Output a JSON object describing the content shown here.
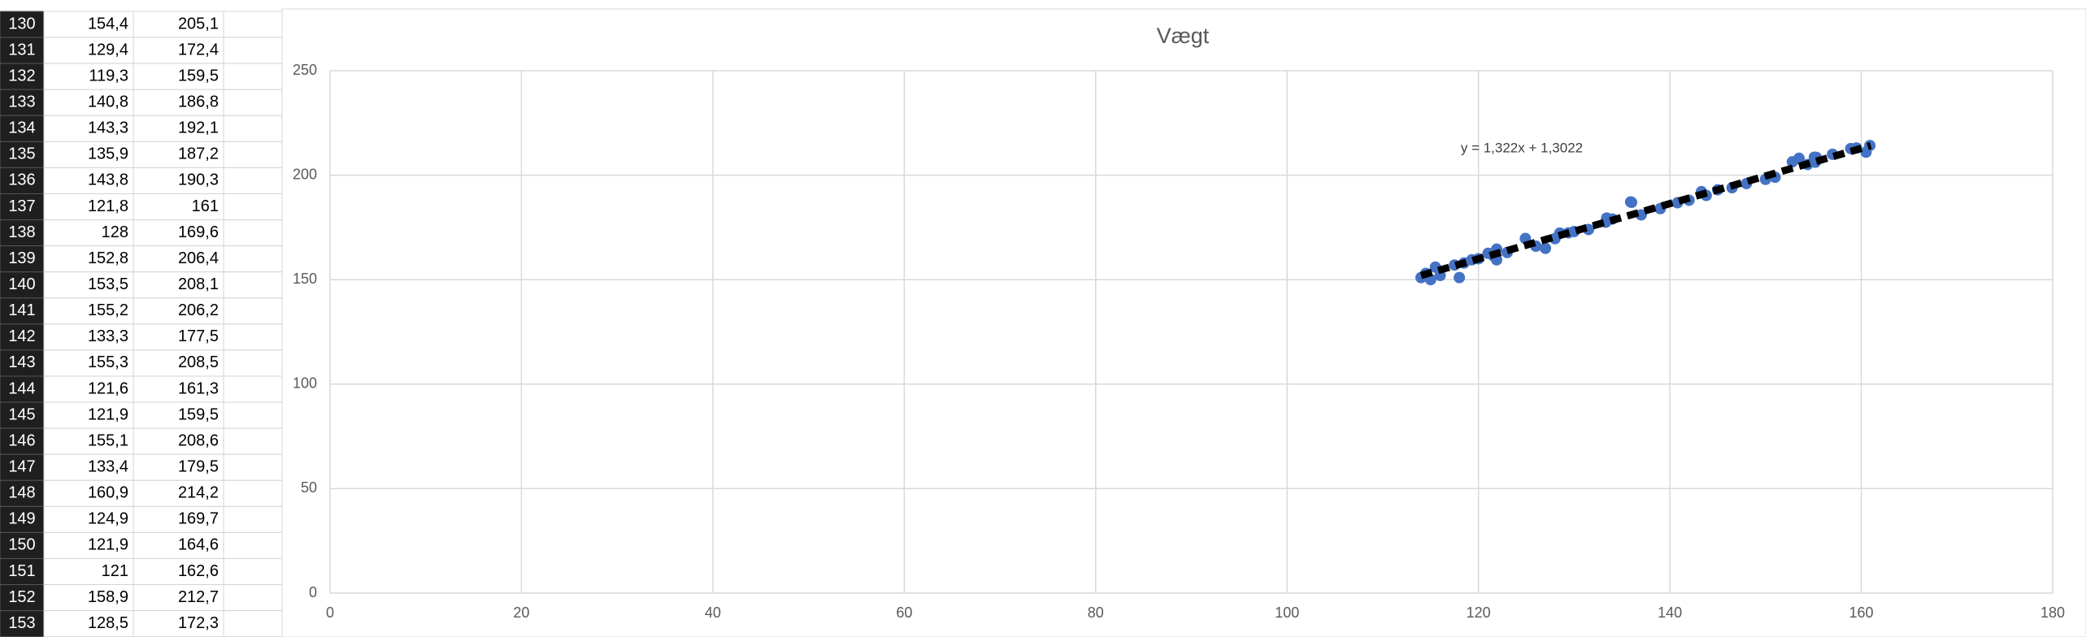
{
  "sheet": {
    "rows": [
      [
        "130",
        "154,4",
        "205,1"
      ],
      [
        "131",
        "129,4",
        "172,4"
      ],
      [
        "132",
        "119,3",
        "159,5"
      ],
      [
        "133",
        "140,8",
        "186,8"
      ],
      [
        "134",
        "143,3",
        "192,1"
      ],
      [
        "135",
        "135,9",
        "187,2"
      ],
      [
        "136",
        "143,8",
        "190,3"
      ],
      [
        "137",
        "121,8",
        "161"
      ],
      [
        "138",
        "128",
        "169,6"
      ],
      [
        "139",
        "152,8",
        "206,4"
      ],
      [
        "140",
        "153,5",
        "208,1"
      ],
      [
        "141",
        "155,2",
        "206,2"
      ],
      [
        "142",
        "133,3",
        "177,5"
      ],
      [
        "143",
        "155,3",
        "208,5"
      ],
      [
        "144",
        "121,6",
        "161,3"
      ],
      [
        "145",
        "121,9",
        "159,5"
      ],
      [
        "146",
        "155,1",
        "208,6"
      ],
      [
        "147",
        "133,4",
        "179,5"
      ],
      [
        "148",
        "160,9",
        "214,2"
      ],
      [
        "149",
        "124,9",
        "169,7"
      ],
      [
        "150",
        "121,9",
        "164,6"
      ],
      [
        "151",
        "121",
        "162,6"
      ],
      [
        "152",
        "158,9",
        "212,7"
      ],
      [
        "153",
        "128,5",
        "172,3"
      ]
    ]
  },
  "chart_data": {
    "type": "scatter",
    "title": "Vægt",
    "series": [
      {
        "color": "#4472c4",
        "x": [
          154.4,
          129.4,
          119.3,
          140.8,
          143.3,
          135.9,
          143.8,
          121.8,
          128,
          152.8,
          153.5,
          155.2,
          133.3,
          155.3,
          121.6,
          121.9,
          155.1,
          133.4,
          160.9,
          124.9,
          121.9,
          121,
          158.9,
          128.5,
          114,
          114.5,
          115,
          115.5,
          116,
          117.5,
          118,
          118.5,
          120,
          123,
          126,
          127,
          130,
          131.5,
          134,
          136,
          137,
          139,
          142,
          145,
          146.5,
          148,
          150,
          151,
          157,
          159.5,
          160.5
        ],
        "values": [
          205.1,
          172.4,
          159.5,
          186.8,
          192.1,
          187.2,
          190.3,
          161,
          169.6,
          206.4,
          208.1,
          206.2,
          177.5,
          208.5,
          161.3,
          159.5,
          208.6,
          179.5,
          214.2,
          169.7,
          164.6,
          162.6,
          212.7,
          172.3,
          151,
          153,
          150,
          156,
          152,
          157,
          151,
          158,
          160,
          163,
          166,
          165,
          173,
          174,
          179,
          187,
          181,
          184,
          188,
          193,
          194,
          196,
          198,
          199,
          210,
          213,
          211
        ]
      }
    ],
    "trendline": {
      "label": "y = 1,322x + 1,3022",
      "slope": 1.322,
      "intercept": 1.3022,
      "x": [
        114,
        161
      ],
      "color": "#000000"
    },
    "xlim": [
      0,
      180
    ],
    "xticks": [
      0,
      20,
      40,
      60,
      80,
      100,
      120,
      140,
      160,
      180
    ],
    "ylim": [
      0,
      250
    ],
    "yticks": [
      0,
      50,
      100,
      150,
      200,
      250
    ],
    "grid": true
  }
}
